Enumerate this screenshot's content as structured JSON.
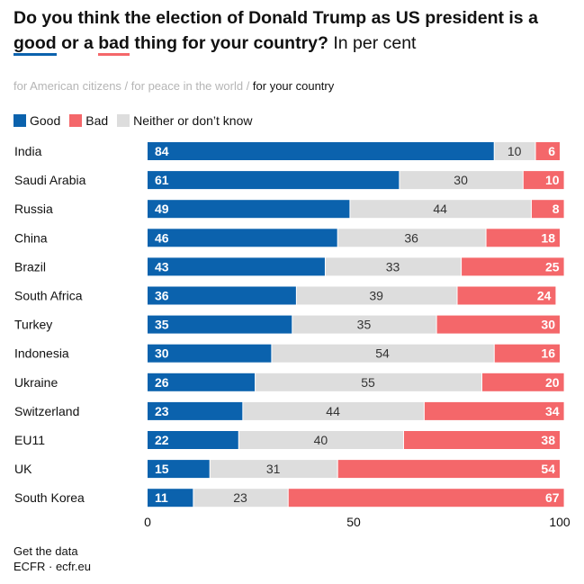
{
  "title": {
    "part1": "Do you think the election of Donald Trump as US president is a ",
    "good": "good",
    "part2": " or a ",
    "bad": "bad",
    "part3": " thing for your country?",
    "unit": " In per cent"
  },
  "subtitle": {
    "opt1": "for American citizens",
    "sep": " / ",
    "opt2": "for peace in the world",
    "opt3": "for your country"
  },
  "colors": {
    "good": "#0b62ad",
    "bad": "#f4676a",
    "neither": "#dddddd"
  },
  "chart_data": {
    "type": "bar",
    "orientation": "horizontal-stacked",
    "categories": [
      "India",
      "Saudi Arabia",
      "Russia",
      "China",
      "Brazil",
      "South Africa",
      "Turkey",
      "Indonesia",
      "Ukraine",
      "Switzerland",
      "EU11",
      "UK",
      "South Korea"
    ],
    "series": [
      {
        "name": "Good",
        "values": [
          84,
          61,
          49,
          46,
          43,
          36,
          35,
          30,
          26,
          23,
          22,
          15,
          11
        ]
      },
      {
        "name": "Neither or don’t know",
        "values": [
          10,
          30,
          44,
          36,
          33,
          39,
          35,
          54,
          55,
          44,
          40,
          31,
          23
        ]
      },
      {
        "name": "Bad",
        "values": [
          6,
          10,
          8,
          18,
          25,
          24,
          30,
          16,
          20,
          34,
          38,
          54,
          67
        ]
      }
    ],
    "xlim": [
      0,
      100
    ],
    "xticks": [
      "0",
      "50",
      "100"
    ],
    "legend": "top-left"
  },
  "footer": {
    "link": "Get the data",
    "source": "ECFR · ecfr.eu"
  }
}
